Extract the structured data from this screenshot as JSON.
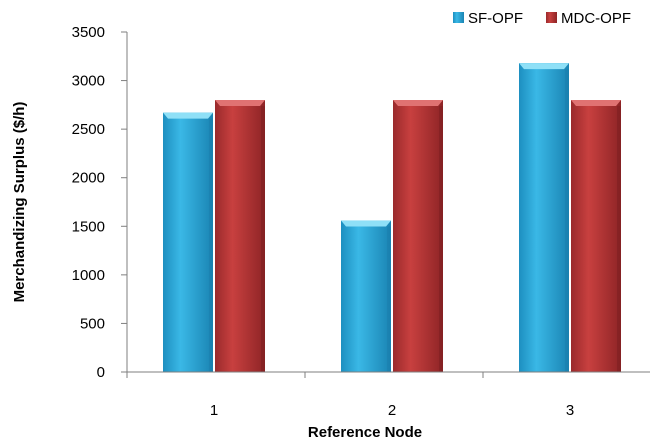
{
  "chart_data": {
    "type": "bar",
    "categories": [
      "1",
      "2",
      "3"
    ],
    "series": [
      {
        "name": "SF-OPF",
        "values": [
          2670,
          1560,
          3180
        ]
      },
      {
        "name": "MDC-OPF",
        "values": [
          2800,
          2800,
          2800
        ]
      }
    ],
    "xlabel": "Reference Node",
    "ylabel": "Merchandizing Surplus ($/h)",
    "ylim": [
      0,
      3500
    ],
    "yticks": [
      0,
      500,
      1000,
      1500,
      2000,
      2500,
      3000,
      3500
    ],
    "grid": false,
    "legend_position": "top-right",
    "colors": {
      "SF-OPF": "#2faee0",
      "MDC-OPF": "#c0393b"
    }
  }
}
